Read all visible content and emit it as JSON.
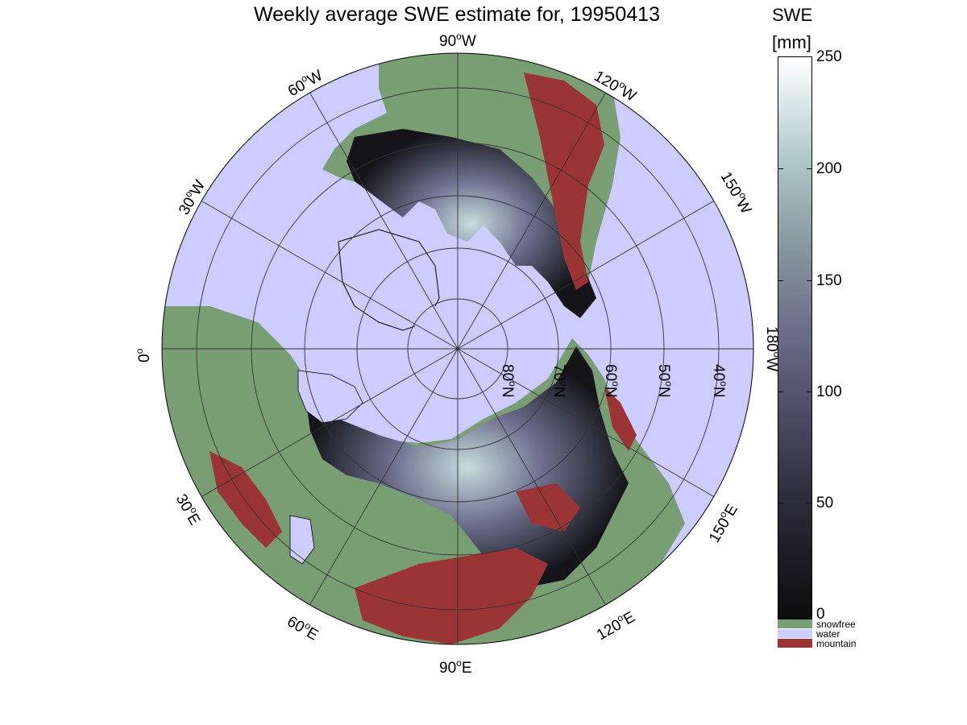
{
  "title": "Weekly average SWE estimate for, 19950413",
  "colorbar": {
    "label": "SWE",
    "unit": "[mm]",
    "ticks": [
      "250",
      "200",
      "150",
      "100",
      "50",
      "0"
    ],
    "min": 0,
    "max": 250
  },
  "legend": [
    {
      "label": "snowfree",
      "color": "#7a9e74"
    },
    {
      "label": "water",
      "color": "#ccccff"
    },
    {
      "label": "mountain",
      "color": "#9b3434"
    }
  ],
  "map": {
    "projection": "north polar stereographic",
    "longitude_labels": {
      "90W": "90",
      "60W": "60",
      "120W": "120",
      "30W": "30",
      "150W": "150",
      "0": "0",
      "180W": "180",
      "30E": "30",
      "150E": "150",
      "60E": "60",
      "120E": "120",
      "90E": "90"
    },
    "deg_sup": "o",
    "w_suffix": "W",
    "e_suffix": "E",
    "latitude_labels": [
      "80",
      "70",
      "60",
      "50",
      "40"
    ],
    "n_suffix": "N",
    "colors": {
      "water": "#ccccff",
      "snowfree": "#7a9e74",
      "mountain": "#9b3434",
      "snow_dark": "#141419",
      "snow_mid": "#4a4a5e",
      "snow_light": "#b6cccc"
    }
  }
}
